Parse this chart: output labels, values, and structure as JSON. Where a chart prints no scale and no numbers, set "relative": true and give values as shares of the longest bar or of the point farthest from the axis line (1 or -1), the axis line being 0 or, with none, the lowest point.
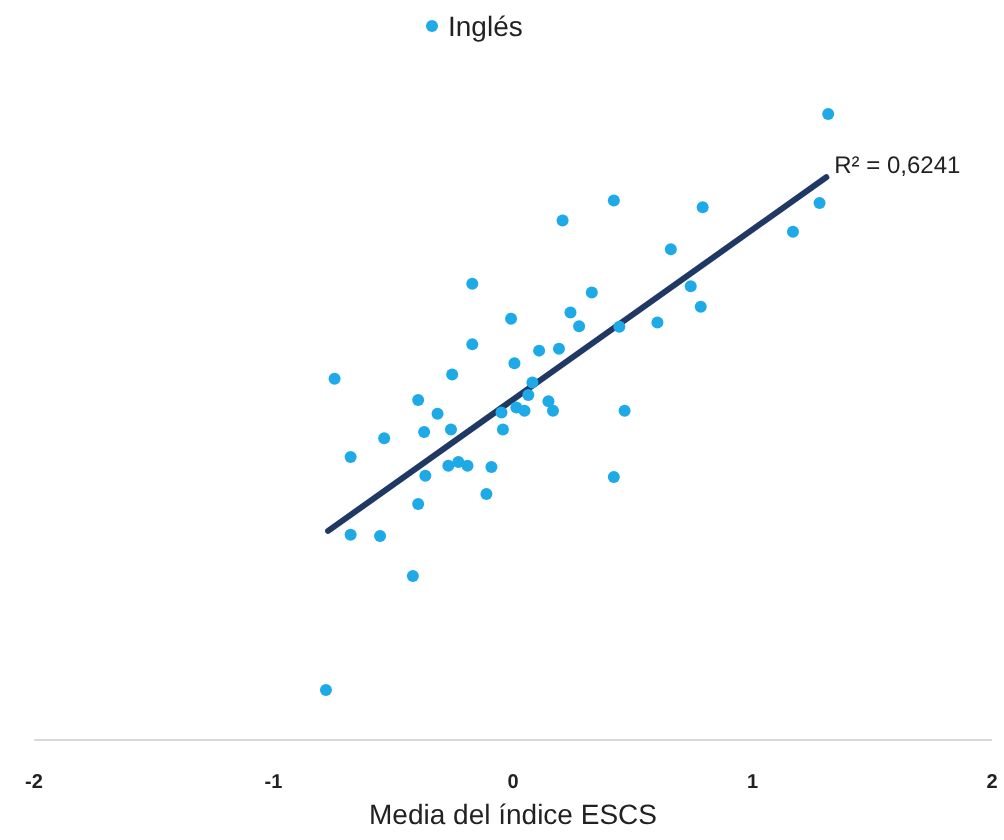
{
  "chart_data": {
    "type": "scatter",
    "relative": true,
    "xlabel": "Media del índice ESCS",
    "xlim": [
      -2,
      2
    ],
    "xticks": [
      -2,
      -1,
      0,
      1,
      2
    ],
    "legend": "top",
    "grid": false,
    "annotations": [
      "R² = 0,6241"
    ],
    "series": [
      {
        "name": "Inglés",
        "marker": "circle",
        "color": "#1eaae7",
        "x": [
          1.316,
          0.207,
          -0.17,
          -0.008,
          0.24,
          0.276,
          -0.17,
          -0.254,
          0.006,
          0.109,
          0.192,
          -0.745,
          -0.396,
          0.064,
          0.148,
          0.421,
          0.792,
          1.28,
          1.169,
          0.659,
          0.329,
          0.444,
          0.603,
          0.742,
          0.784,
          -0.315,
          0.081,
          0.014,
          0.048,
          -0.048,
          0.167,
          0.466,
          -0.538,
          -0.371,
          -0.259,
          -0.042,
          -0.678,
          -0.366,
          -0.27,
          -0.228,
          -0.19,
          -0.09,
          -0.111,
          -0.396,
          0.421,
          -0.678,
          -0.555,
          -0.418,
          -0.781
        ],
        "values": [
          1.0,
          0.83,
          0.729,
          0.673,
          0.683,
          0.661,
          0.632,
          0.584,
          0.602,
          0.622,
          0.625,
          0.577,
          0.543,
          0.551,
          0.541,
          0.862,
          0.851,
          0.858,
          0.812,
          0.784,
          0.715,
          0.66,
          0.667,
          0.725,
          0.692,
          0.521,
          0.571,
          0.531,
          0.526,
          0.523,
          0.526,
          0.526,
          0.482,
          0.492,
          0.496,
          0.496,
          0.452,
          0.422,
          0.438,
          0.444,
          0.438,
          0.436,
          0.393,
          0.377,
          0.42,
          0.328,
          0.326,
          0.262,
          0.08
        ]
      },
      {
        "type": "line",
        "color": "#1f3864",
        "x": [
          -0.772,
          1.308
        ],
        "values": [
          0.334,
          0.899
        ]
      }
    ]
  }
}
